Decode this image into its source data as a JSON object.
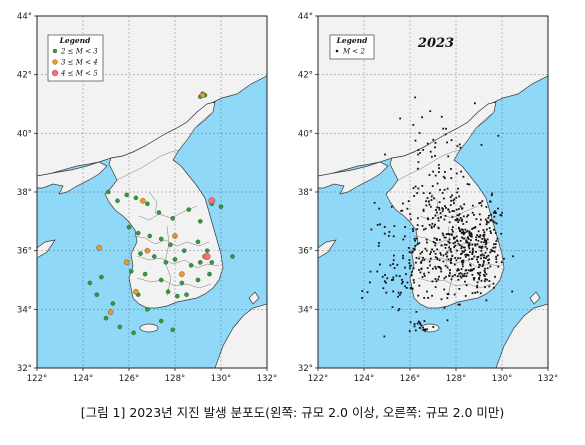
{
  "caption": "[그림 1] 2023년 지진 발생 분포도(왼쪽: 규모 2.0 이상, 오른쪽: 규모 2.0 미만)",
  "colors": {
    "sea": "#8fd8f8",
    "land": "#f2f2f2",
    "border": "#7a7a7a",
    "coast": "#3a3a3a"
  },
  "chart_data": [
    {
      "type": "scatter",
      "x_range": [
        122,
        132
      ],
      "y_range": [
        32,
        44
      ],
      "x_ticks": [
        "122°",
        "124°",
        "126°",
        "128°",
        "130°",
        "132°"
      ],
      "y_ticks": [
        "32°",
        "34°",
        "36°",
        "38°",
        "40°",
        "42°",
        "44°"
      ],
      "legend": {
        "title": "Legend",
        "entries": [
          {
            "label": "2 ≤ M < 3",
            "color": "#2e9e3a"
          },
          {
            "label": "3 ≤ M < 4",
            "color": "#f39a1e"
          },
          {
            "label": "4 ≤ M < 5",
            "color": "#ff6b7a"
          }
        ]
      },
      "series": [
        {
          "name": "2 ≤ M < 3",
          "color": "#2e9e3a",
          "points": [
            [
              125.1,
              38.0
            ],
            [
              125.5,
              37.7
            ],
            [
              126.3,
              37.8
            ],
            [
              126.8,
              37.6
            ],
            [
              125.9,
              37.9
            ],
            [
              127.3,
              37.3
            ],
            [
              127.9,
              37.1
            ],
            [
              128.6,
              37.4
            ],
            [
              129.1,
              37.0
            ],
            [
              129.6,
              37.6
            ],
            [
              130.0,
              37.5
            ],
            [
              126.0,
              36.8
            ],
            [
              126.4,
              36.6
            ],
            [
              126.9,
              36.5
            ],
            [
              127.4,
              36.4
            ],
            [
              127.8,
              36.2
            ],
            [
              128.4,
              36.0
            ],
            [
              129.0,
              36.3
            ],
            [
              129.4,
              36.0
            ],
            [
              126.5,
              35.9
            ],
            [
              127.1,
              35.8
            ],
            [
              127.6,
              35.6
            ],
            [
              128.0,
              35.7
            ],
            [
              128.7,
              35.5
            ],
            [
              129.1,
              35.6
            ],
            [
              129.5,
              35.2
            ],
            [
              126.1,
              35.3
            ],
            [
              126.7,
              35.2
            ],
            [
              127.4,
              35.0
            ],
            [
              128.3,
              34.9
            ],
            [
              129.0,
              35.0
            ],
            [
              129.6,
              35.6
            ],
            [
              128.5,
              34.5
            ],
            [
              127.7,
              34.6
            ],
            [
              126.4,
              34.5
            ],
            [
              126.8,
              34.0
            ],
            [
              127.4,
              33.6
            ],
            [
              126.2,
              33.2
            ],
            [
              127.9,
              33.3
            ],
            [
              124.8,
              35.1
            ],
            [
              124.6,
              34.5
            ],
            [
              125.3,
              34.2
            ],
            [
              125.0,
              33.7
            ],
            [
              125.6,
              33.4
            ],
            [
              129.3,
              41.3
            ],
            [
              129.1,
              41.25
            ],
            [
              129.2,
              41.35
            ],
            [
              124.3,
              34.9
            ],
            [
              128.1,
              34.45
            ],
            [
              130.5,
              35.8
            ]
          ]
        },
        {
          "name": "3 ≤ M < 4",
          "color": "#f39a1e",
          "points": [
            [
              129.2,
              41.3
            ],
            [
              126.6,
              37.7
            ],
            [
              128.0,
              36.5
            ],
            [
              126.8,
              36.0
            ],
            [
              124.7,
              36.1
            ],
            [
              125.9,
              35.6
            ],
            [
              128.3,
              35.2
            ],
            [
              129.3,
              35.8
            ],
            [
              125.2,
              33.9
            ],
            [
              126.3,
              34.6
            ]
          ]
        },
        {
          "name": "4 ≤ M < 5",
          "color": "#ff6b7a",
          "points": [
            [
              129.6,
              37.7
            ],
            [
              129.4,
              35.8
            ]
          ]
        }
      ]
    },
    {
      "type": "scatter",
      "x_range": [
        122,
        132
      ],
      "y_range": [
        32,
        44
      ],
      "x_ticks": [
        "122°",
        "124°",
        "126°",
        "128°",
        "130°",
        "132°"
      ],
      "y_ticks": [
        "32°",
        "34°",
        "36°",
        "38°",
        "40°",
        "42°",
        "44°"
      ],
      "annotation": "2023",
      "legend": {
        "title": "Legend",
        "entries": [
          {
            "label": "M < 2",
            "color": "#111111"
          }
        ]
      },
      "series": [
        {
          "name": "M < 2",
          "color": "#111111",
          "density_center": [
            128.2,
            36.0
          ]
        }
      ]
    }
  ]
}
